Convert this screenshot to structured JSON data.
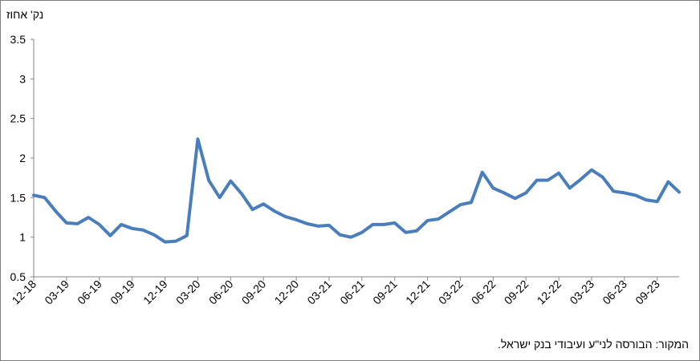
{
  "chart_data": {
    "type": "line",
    "ylabel": "נק' אחוז",
    "source": "המקור: הבורסה לני\"ע ועיבודי בנק ישראל.",
    "ylim": [
      0.5,
      3.5
    ],
    "yticks": [
      "0.5",
      "1",
      "1.5",
      "2",
      "2.5",
      "3",
      "3.5"
    ],
    "xticks": [
      "12-18",
      "03-19",
      "06-19",
      "09-19",
      "12-19",
      "03-20",
      "06-20",
      "09-20",
      "12-20",
      "03-21",
      "06-21",
      "09-21",
      "12-21",
      "03-22",
      "06-22",
      "09-22",
      "12-22",
      "03-23",
      "06-23",
      "09-23"
    ],
    "grid": false,
    "legend": "none",
    "color": "#4a7ebb",
    "series": [
      {
        "values": [
          1.53,
          1.5,
          1.33,
          1.18,
          1.17,
          1.25,
          1.16,
          1.02,
          1.16,
          1.11,
          1.09,
          1.03,
          0.94,
          0.95,
          1.02,
          2.24,
          1.72,
          1.5,
          1.71,
          1.55,
          1.35,
          1.42,
          1.33,
          1.26,
          1.22,
          1.17,
          1.14,
          1.15,
          1.03,
          1.0,
          1.06,
          1.16,
          1.16,
          1.18,
          1.06,
          1.08,
          1.21,
          1.23,
          1.32,
          1.41,
          1.44,
          1.82,
          1.62,
          1.56,
          1.49,
          1.56,
          1.72,
          1.72,
          1.81,
          1.62,
          1.73,
          1.85,
          1.76,
          1.58,
          1.56,
          1.53,
          1.47,
          1.45,
          1.7,
          1.57
        ]
      }
    ]
  }
}
